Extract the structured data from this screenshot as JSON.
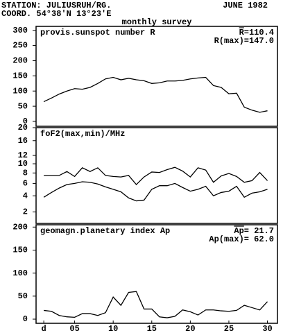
{
  "header": {
    "station": "STATION: JULIUSRUH/RG.",
    "date": "JUNE 1982",
    "coord": "COORD. 54°38'N 13°23'E",
    "subtitle": "monthly survey"
  },
  "chart_data": [
    {
      "type": "line",
      "title": "provis.sunspot number R",
      "annotations": [
        "R=110.4",
        "R(max)=147.0"
      ],
      "x": [
        1,
        2,
        3,
        4,
        5,
        6,
        7,
        8,
        9,
        10,
        11,
        12,
        13,
        14,
        15,
        16,
        17,
        18,
        19,
        20,
        21,
        22,
        23,
        24,
        25,
        26,
        27,
        28,
        29,
        30
      ],
      "series": [
        {
          "color": "#000000",
          "values": [
            65,
            77,
            90,
            100,
            108,
            106,
            112,
            125,
            140,
            145,
            137,
            142,
            137,
            134,
            125,
            127,
            133,
            133,
            135,
            140,
            143,
            145,
            118,
            112,
            91,
            93,
            47,
            37,
            30,
            35
          ]
        }
      ],
      "xlim": [
        0,
        31.3
      ],
      "ylim": [
        -16,
        313
      ],
      "yticks": [
        0,
        50,
        100,
        150,
        200,
        250,
        300
      ]
    },
    {
      "type": "line",
      "title": "foF2(max,min)/MHz",
      "scale": "sqrt",
      "x": [
        1,
        2,
        3,
        4,
        5,
        6,
        7,
        8,
        9,
        10,
        11,
        12,
        13,
        14,
        15,
        16,
        17,
        18,
        19,
        20,
        21,
        22,
        23,
        24,
        25,
        26,
        27,
        28,
        29,
        30
      ],
      "series": [
        {
          "color": "#000000",
          "values": [
            7.5,
            7.5,
            7.5,
            8.3,
            7.3,
            9.1,
            8.3,
            9.1,
            7.5,
            7.3,
            7.2,
            7.5,
            5.8,
            7.2,
            8.2,
            8.1,
            8.7,
            9.2,
            8.4,
            7.2,
            9.1,
            8.6,
            6.2,
            7.4,
            7.9,
            7.3,
            6.2,
            6.5,
            8.1,
            6.5
          ]
        },
        {
          "color": "#000000",
          "values": [
            3.8,
            4.5,
            5.2,
            5.8,
            6.0,
            6.3,
            6.2,
            5.9,
            5.4,
            5.0,
            4.6,
            3.7,
            3.3,
            3.4,
            5.0,
            5.6,
            5.6,
            6.0,
            5.3,
            4.7,
            5.0,
            5.5,
            4.0,
            4.5,
            4.7,
            5.5,
            3.8,
            4.4,
            4.6,
            5.0
          ]
        }
      ],
      "xlim": [
        0,
        31.3
      ],
      "ylim": [
        1,
        20
      ],
      "yticks": [
        2,
        4,
        6,
        8,
        10,
        12,
        16,
        20
      ]
    },
    {
      "type": "line",
      "title": "geomagn.planetary index Ap",
      "annotations": [
        "Ap= 21.7",
        "Ap(max)= 62.0"
      ],
      "x": [
        1,
        2,
        3,
        4,
        5,
        6,
        7,
        8,
        9,
        10,
        11,
        12,
        13,
        14,
        15,
        16,
        17,
        18,
        19,
        20,
        21,
        22,
        23,
        24,
        25,
        26,
        27,
        28,
        29,
        30
      ],
      "series": [
        {
          "color": "#000000",
          "values": [
            19,
            17,
            8,
            5,
            4,
            12,
            12,
            8,
            14,
            48,
            30,
            58,
            60,
            22,
            22,
            5,
            3,
            6,
            20,
            16,
            9,
            20,
            20,
            18,
            17,
            19,
            30,
            25,
            20,
            38
          ]
        }
      ],
      "xlim": [
        0,
        31.3
      ],
      "ylim": [
        -9,
        205
      ],
      "yticks": [
        0,
        50,
        100,
        150,
        200
      ],
      "xticks": [
        {
          "value": 1,
          "label": "d"
        },
        {
          "value": 5,
          "label": "05"
        },
        10,
        15,
        20,
        25,
        30
      ]
    }
  ]
}
